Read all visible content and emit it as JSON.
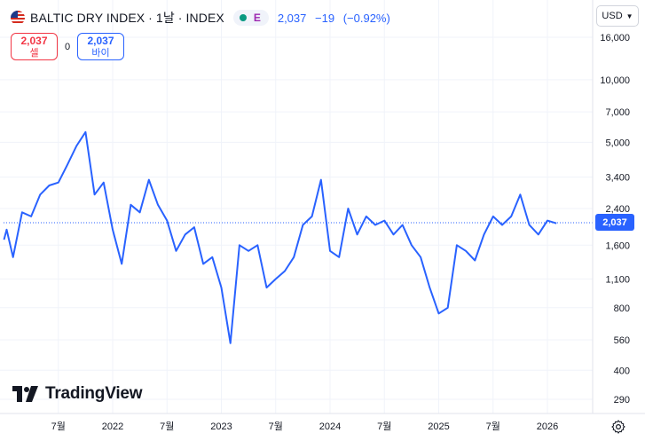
{
  "header": {
    "title": "BALTIC DRY INDEX · 1날 · INDEX",
    "exchange_badge": "E",
    "last_price": "2,037",
    "change": "−19",
    "change_pct": "(−0.92%)"
  },
  "trade": {
    "sell_price": "2,037",
    "sell_label": "셀",
    "spread": "0",
    "buy_price": "2,037",
    "buy_label": "바이"
  },
  "currency_button": "USD",
  "price_tag": "2,037",
  "logo_text": "TradingView",
  "icons": {
    "flag": "us-flag-icon",
    "status": "market-status-dot-icon",
    "currency_dropdown": "chevron-down-icon",
    "settings": "gear-icon"
  },
  "colors": {
    "line": "#2962ff",
    "sell": "#f23645",
    "buy": "#2962ff",
    "price_tag_bg": "#2962ff",
    "grid": "#f0f3fa",
    "market_status": "#089981",
    "exchange_badge": "#9c27b0"
  },
  "chart_data": {
    "type": "line",
    "y_scale": "log",
    "grid": true,
    "last_value": 2037,
    "yticks": [
      290,
      400,
      560,
      800,
      1100,
      1600,
      2400,
      3400,
      5000,
      7000,
      10000,
      16000
    ],
    "ytick_labels": [
      "290",
      "400",
      "560",
      "800",
      "1,100",
      "1,600",
      "2,400",
      "3,400",
      "5,000",
      "7,000",
      "10,000",
      "16,000"
    ],
    "xtick_labels": [
      "7월",
      "2022",
      "7월",
      "2023",
      "7월",
      "2024",
      "7월",
      "2025",
      "7월",
      "2026"
    ],
    "xtick_dates": [
      "2021-07",
      "2022-01",
      "2022-07",
      "2023-01",
      "2023-07",
      "2024-01",
      "2024-07",
      "2025-01",
      "2025-07",
      "2026-01"
    ],
    "series": [
      {
        "values": [
          [
            "2021-01",
            1700
          ],
          [
            "2021-01",
            1900
          ],
          [
            "2021-02",
            1400
          ],
          [
            "2021-03",
            2300
          ],
          [
            "2021-04",
            2200
          ],
          [
            "2021-05",
            2800
          ],
          [
            "2021-06",
            3100
          ],
          [
            "2021-07",
            3200
          ],
          [
            "2021-08",
            3900
          ],
          [
            "2021-09",
            4800
          ],
          [
            "2021-10",
            5600
          ],
          [
            "2021-11",
            2800
          ],
          [
            "2021-12",
            3200
          ],
          [
            "2022-01",
            1900
          ],
          [
            "2022-02",
            1300
          ],
          [
            "2022-03",
            2500
          ],
          [
            "2022-04",
            2300
          ],
          [
            "2022-05",
            3300
          ],
          [
            "2022-06",
            2500
          ],
          [
            "2022-07",
            2100
          ],
          [
            "2022-08",
            1500
          ],
          [
            "2022-09",
            1800
          ],
          [
            "2022-10",
            1950
          ],
          [
            "2022-11",
            1300
          ],
          [
            "2022-12",
            1400
          ],
          [
            "2023-01",
            1000
          ],
          [
            "2023-02",
            540
          ],
          [
            "2023-03",
            1600
          ],
          [
            "2023-04",
            1500
          ],
          [
            "2023-05",
            1600
          ],
          [
            "2023-06",
            1000
          ],
          [
            "2023-07",
            1100
          ],
          [
            "2023-08",
            1200
          ],
          [
            "2023-09",
            1400
          ],
          [
            "2023-10",
            2000
          ],
          [
            "2023-11",
            2200
          ],
          [
            "2023-12",
            3300
          ],
          [
            "2024-01",
            1500
          ],
          [
            "2024-02",
            1400
          ],
          [
            "2024-03",
            2400
          ],
          [
            "2024-04",
            1800
          ],
          [
            "2024-05",
            2200
          ],
          [
            "2024-06",
            2000
          ],
          [
            "2024-07",
            2100
          ],
          [
            "2024-08",
            1800
          ],
          [
            "2024-09",
            2000
          ],
          [
            "2024-10",
            1600
          ],
          [
            "2024-11",
            1400
          ],
          [
            "2024-12",
            1000
          ],
          [
            "2025-01",
            750
          ],
          [
            "2025-02",
            800
          ],
          [
            "2025-03",
            1600
          ],
          [
            "2025-04",
            1500
          ],
          [
            "2025-05",
            1350
          ],
          [
            "2025-06",
            1800
          ],
          [
            "2025-07",
            2200
          ],
          [
            "2025-08",
            2000
          ],
          [
            "2025-09",
            2200
          ],
          [
            "2025-10",
            2800
          ],
          [
            "2025-11",
            2000
          ],
          [
            "2025-12",
            1800
          ],
          [
            "2026-01",
            2100
          ],
          [
            "2026-02",
            2037
          ]
        ]
      }
    ]
  }
}
